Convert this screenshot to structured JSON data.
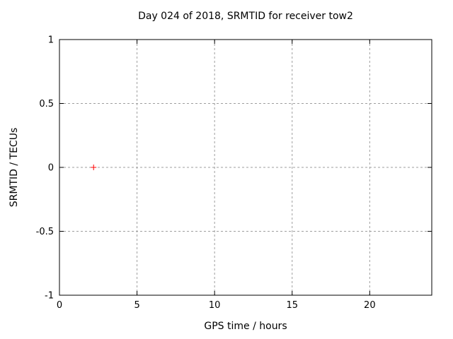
{
  "chart_data": {
    "type": "scatter",
    "title": "Day 024 of 2018, SRMTID for receiver tow2",
    "xlabel": "GPS time / hours",
    "ylabel": "SRMTID / TECUs",
    "xlim": [
      0,
      24
    ],
    "ylim": [
      -1,
      1
    ],
    "xticks": [
      0,
      5,
      10,
      15,
      20
    ],
    "yticks": [
      1,
      0.5,
      0,
      -0.5,
      -1
    ],
    "grid": true,
    "grid_style": "dashed",
    "legend": "none",
    "series": [
      {
        "marker": "plus",
        "color": "#ff0000",
        "points": [
          {
            "x": 2.2,
            "y": 0
          }
        ]
      }
    ],
    "colors": {
      "background": "#ffffff",
      "border": "#000000",
      "grid": "#9e9e9e",
      "text": "#000000",
      "point": "#ff0000"
    }
  }
}
